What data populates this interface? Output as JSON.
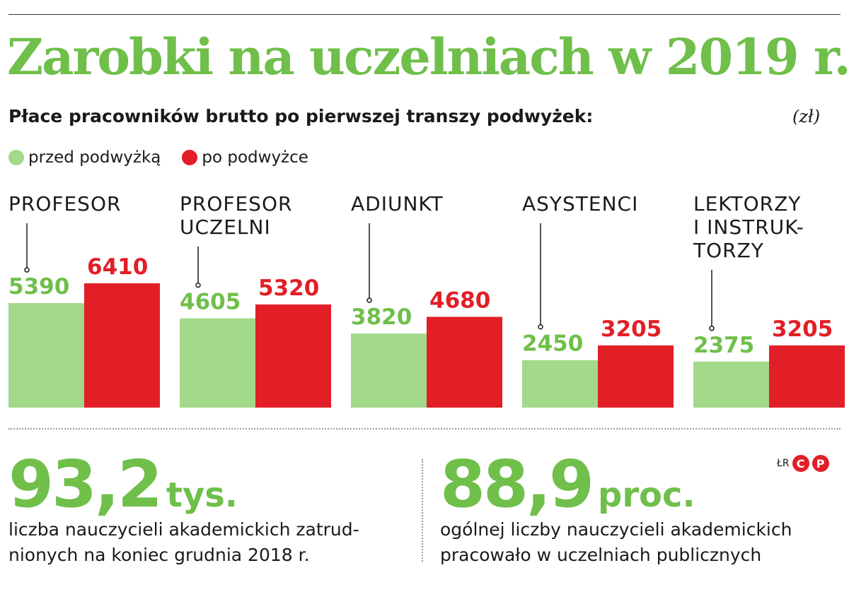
{
  "title": "Zarobki na uczelniach w 2019 r.",
  "subtitle": "Płace pracowników brutto po pierwszej transzy podwyżek:",
  "unit": "(zł)",
  "legend": [
    {
      "label": "przed podwyżką",
      "color": "#a3d98a"
    },
    {
      "label": "po podwyżce",
      "color": "#e21e26"
    }
  ],
  "colors": {
    "before": "#a3d98a",
    "after": "#e21e26",
    "before_text": "#6fbf4a",
    "title": "#6fbf4a"
  },
  "chart_data": {
    "type": "bar",
    "title": "Zarobki na uczelniach w 2019 r.",
    "ylabel": "(zł)",
    "categories": [
      [
        "PROFESOR"
      ],
      [
        "PROFESOR",
        "UCZELNI"
      ],
      [
        "ADIUNKT"
      ],
      [
        "ASYSTENCI"
      ],
      [
        "LEKTORZY",
        "I INSTRUK-",
        "TORZY"
      ]
    ],
    "series": [
      {
        "name": "przed podwyżką",
        "values": [
          5390,
          4605,
          3820,
          2450,
          2375
        ]
      },
      {
        "name": "po podwyżce",
        "values": [
          6410,
          5320,
          4680,
          3205,
          3205
        ]
      }
    ],
    "legend_position": "top-left",
    "grid": false
  },
  "stats": [
    {
      "number": "93,2",
      "suffix": "tys.",
      "description": "liczba nauczycieli akademickich zatrud-nionych na koniec grudnia 2018 r.",
      "lines": [
        "liczba nauczycieli akademickich zatrud-",
        "nionych na koniec grudnia 2018 r."
      ]
    },
    {
      "number": "88,9",
      "suffix": "proc.",
      "lines": [
        "ogólnej liczby nauczycieli akademickich",
        "pracowało w uczelniach publicznych"
      ]
    }
  ],
  "credit": {
    "text": "ŁR",
    "icons": [
      "C",
      "P"
    ]
  }
}
